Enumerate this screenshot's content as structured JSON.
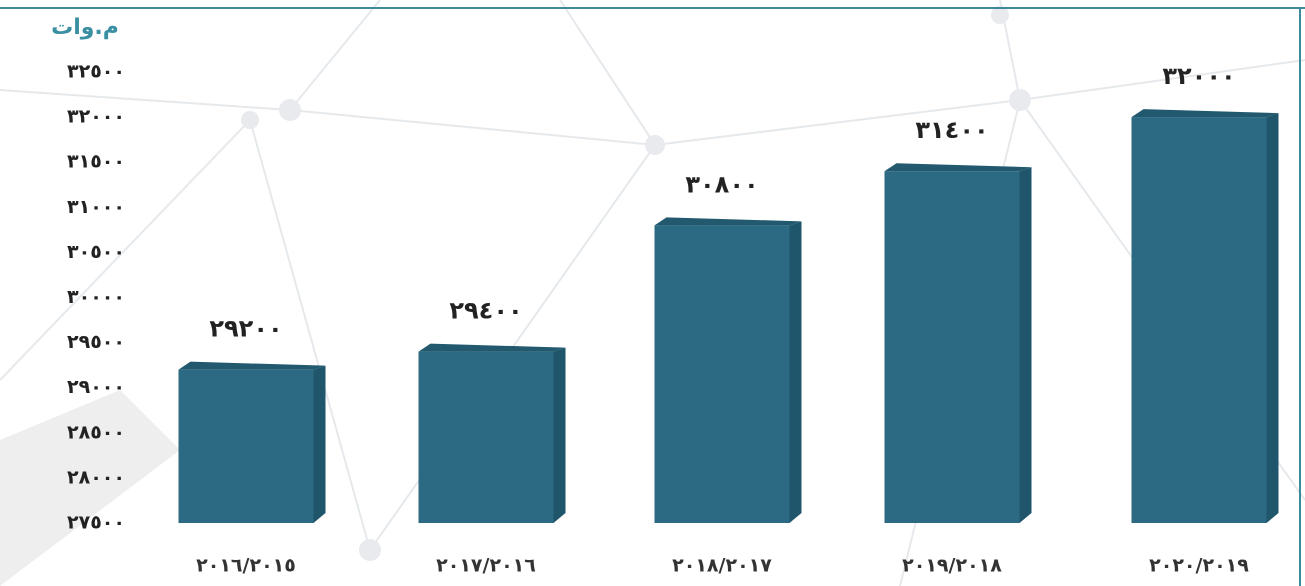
{
  "chart_data": {
    "type": "bar",
    "y_label": "م.وات",
    "categories": [
      "٢٠١٦/٢٠١٥",
      "٢٠١٧/٢٠١٦",
      "٢٠١٨/٢٠١٧",
      "٢٠١٩/٢٠١٨",
      "٢٠٢٠/٢٠١٩"
    ],
    "values": [
      29200,
      29400,
      30800,
      31400,
      32000
    ],
    "value_labels": [
      "٢٩٢٠٠",
      "٢٩٤٠٠",
      "٣٠٨٠٠",
      "٣١٤٠٠",
      "٣٢٠٠٠"
    ],
    "color": "#2b6a82",
    "ylim": [
      27500,
      32500
    ],
    "yticks": [
      {
        "value": 27500,
        "label": "٢٧٥٠٠"
      },
      {
        "value": 28000,
        "label": "٢٨٠٠٠"
      },
      {
        "value": 28500,
        "label": "٢٨٥٠٠"
      },
      {
        "value": 29000,
        "label": "٢٩٠٠٠"
      },
      {
        "value": 29500,
        "label": "٢٩٥٠٠"
      },
      {
        "value": 30000,
        "label": "٣٠٠٠٠"
      },
      {
        "value": 30500,
        "label": "٣٠٥٠٠"
      },
      {
        "value": 31000,
        "label": "٣١٠٠٠"
      },
      {
        "value": 31500,
        "label": "٣١٥٠٠"
      },
      {
        "value": 32000,
        "label": "٣٢٠٠٠"
      },
      {
        "value": 32500,
        "label": "٣٢٥٠٠"
      }
    ],
    "grid": false
  }
}
